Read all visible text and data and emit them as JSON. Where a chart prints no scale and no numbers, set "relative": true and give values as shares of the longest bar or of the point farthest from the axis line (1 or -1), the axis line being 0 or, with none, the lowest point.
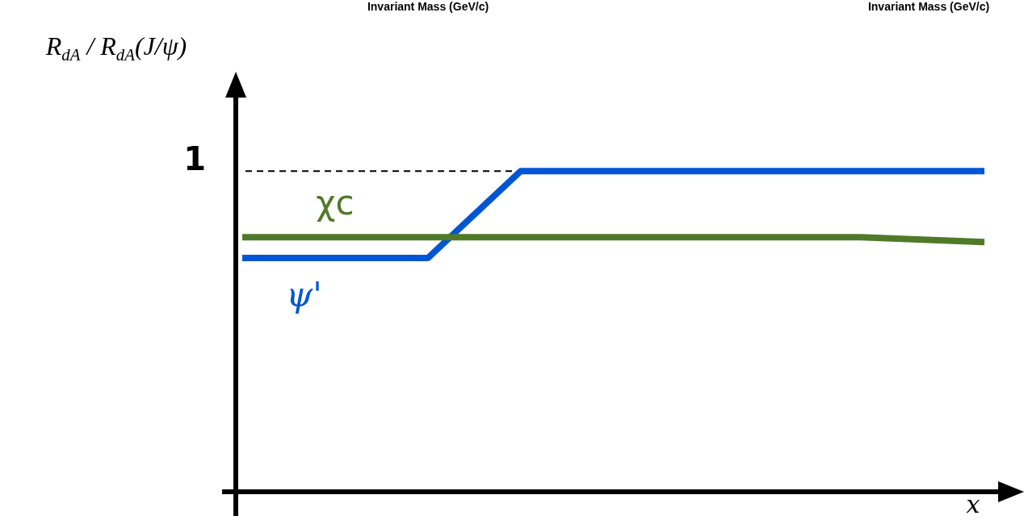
{
  "chart_data": {
    "type": "line",
    "relative": true,
    "ylabel": "R$_{dA}$ / R$_{dA}$(J/ψ)",
    "xlabel": "x",
    "categories": [
      null,
      null,
      null,
      null,
      null,
      null,
      null,
      null,
      null,
      null,
      null,
      null,
      null,
      null,
      null,
      null,
      null,
      null,
      null,
      null,
      null,
      null,
      null,
      null,
      null
    ],
    "series": [
      {
        "name": "χc",
        "color": "#4f7a28",
        "values": [
          0.794,
          null,
          null,
          null,
          null,
          null,
          null,
          null,
          null,
          null,
          null,
          null,
          null,
          null,
          null,
          null,
          null,
          null,
          null,
          null,
          0.794,
          null,
          null,
          null,
          0.779
        ]
      },
      {
        "name": "ψ'",
        "color": "#0055d4",
        "values": [
          0.729,
          null,
          null,
          null,
          null,
          null,
          0.729,
          null,
          null,
          1,
          null,
          null,
          null,
          null,
          null,
          null,
          null,
          null,
          null,
          null,
          null,
          null,
          null,
          null,
          1
        ]
      }
    ],
    "ref_lines": [
      {
        "axis": "y",
        "value": 1,
        "label": "1",
        "line_style": "dashed",
        "color": "#000000"
      }
    ],
    "annotations": [
      "Invariant Mass (GeV/c)",
      "Invariant Mass (GeV/c)"
    ],
    "legend": false,
    "marker": "none",
    "line_style": "solid",
    "tick_labels": false
  }
}
